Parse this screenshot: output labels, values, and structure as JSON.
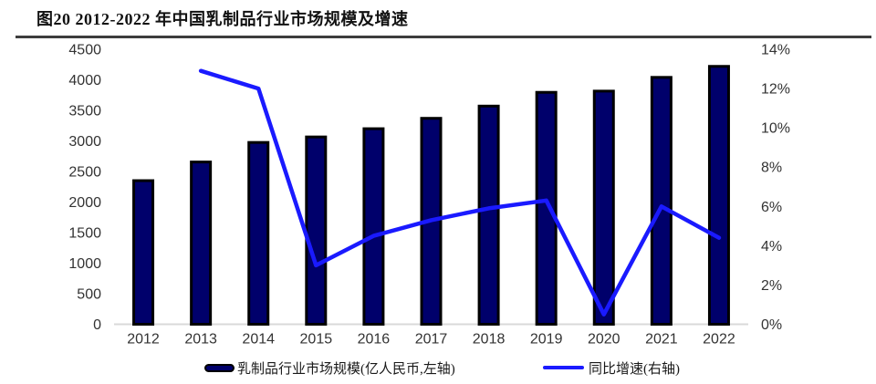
{
  "figure": {
    "title": "图20 2012-2022 年中国乳制品行业市场规模及增速"
  },
  "chart_data": {
    "type": "bar+line",
    "title": "图20 2012-2022 年中国乳制品行业市场规模及增速",
    "categories": [
      "2012",
      "2013",
      "2014",
      "2015",
      "2016",
      "2017",
      "2018",
      "2019",
      "2020",
      "2021",
      "2022"
    ],
    "series": [
      {
        "name": "乳制品行业市场规模(亿人民币,左轴)",
        "type": "bar",
        "axis": "left",
        "color": "#00006B",
        "border_color": "#000000",
        "values": [
          2350,
          2655,
          2975,
          3065,
          3200,
          3370,
          3570,
          3795,
          3815,
          4040,
          4220
        ]
      },
      {
        "name": "同比增速(右轴)",
        "type": "line",
        "axis": "right",
        "color": "#1A1AFF",
        "values": [
          null,
          12.9,
          12.0,
          3.0,
          4.5,
          5.3,
          5.9,
          6.3,
          0.5,
          6.0,
          4.4
        ]
      }
    ],
    "left_axis": {
      "min": 0,
      "max": 4500,
      "step": 500,
      "tick_labels": [
        "0",
        "500",
        "1000",
        "1500",
        "2000",
        "2500",
        "3000",
        "3500",
        "4000",
        "4500"
      ]
    },
    "right_axis": {
      "min": 0,
      "max": 14,
      "step": 2,
      "tick_labels": [
        "0%",
        "2%",
        "4%",
        "6%",
        "8%",
        "10%",
        "12%",
        "14%"
      ]
    },
    "grid": false,
    "legend_position": "bottom",
    "axis_text_color": "#333333",
    "baseline_color": "#d9d9d9"
  },
  "legend": {
    "items": [
      {
        "label": "乳制品行业市场规模(亿人民币,左轴)",
        "swatch": "bar"
      },
      {
        "label": "同比增速(右轴)",
        "swatch": "line"
      }
    ]
  }
}
